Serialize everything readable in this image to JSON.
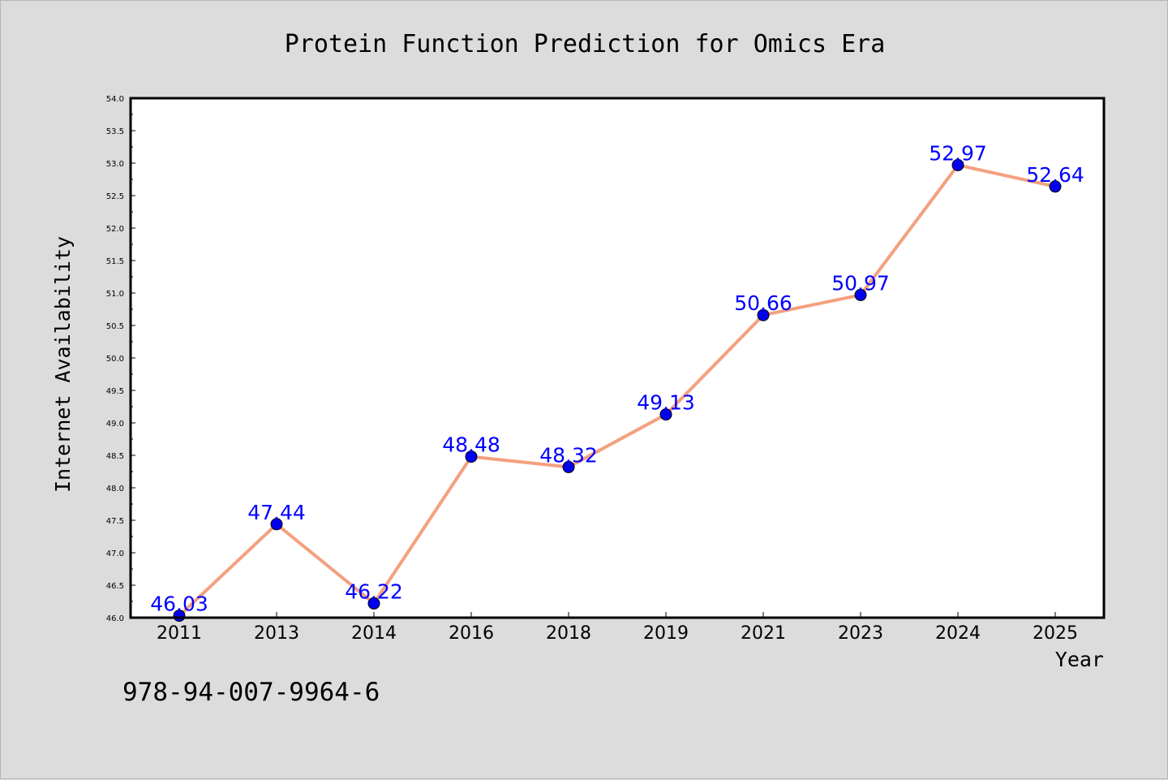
{
  "footer": {
    "isbn": "978-94-007-9964-6"
  },
  "chart_data": {
    "type": "line",
    "title": "Protein Function Prediction for Omics Era",
    "xlabel": "Year",
    "ylabel": "Internet Availability",
    "categories": [
      "2011",
      "2013",
      "2014",
      "2016",
      "2018",
      "2019",
      "2021",
      "2023",
      "2024",
      "2025"
    ],
    "series": [
      {
        "values": [
          46.03,
          47.44,
          46.22,
          48.48,
          48.32,
          49.13,
          50.66,
          50.97,
          52.97,
          52.64
        ],
        "data_labels": [
          "46.03",
          "47.44",
          "46.22",
          "48.48",
          "48.32",
          "49.13",
          "50.66",
          "50.97",
          "52.97",
          "52.64"
        ],
        "line_color": "#f4a07f",
        "marker_color": "#0000ee"
      }
    ],
    "ylim": [
      46.0,
      54.0
    ],
    "yticks": [
      "46.0",
      "46.5",
      "47.0",
      "47.5",
      "48.0",
      "48.5",
      "49.0",
      "49.5",
      "50.0",
      "50.5",
      "51.0",
      "51.5",
      "52.0",
      "52.5",
      "53.0",
      "53.5",
      "54.0"
    ],
    "label_color": "#0000ff",
    "grid": false,
    "legend": "none"
  }
}
